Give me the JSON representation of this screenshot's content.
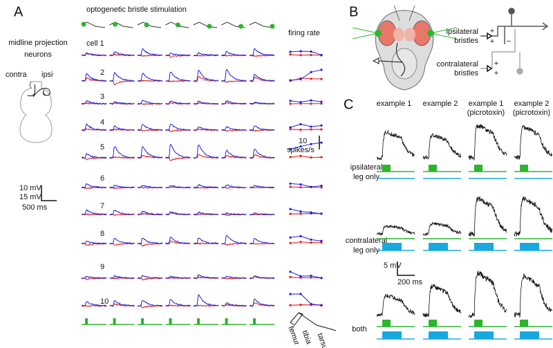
{
  "panel_a": {
    "label": "A",
    "stimulation_title": "optogenetic bristle stimulation",
    "neuron_title": [
      "midline projection",
      "neurons"
    ],
    "contra": "contra",
    "ipsi": "ipsi",
    "cells": [
      "cell 1",
      "2",
      "3",
      "4",
      "5",
      "6",
      "7",
      "8",
      "9",
      "10"
    ],
    "scale_blue": "10 mV",
    "scale_red": "15 mV",
    "scale_time": "500 ms",
    "firing_rate": "firing rate",
    "rate_scale": [
      "10",
      "spikes/s"
    ],
    "leg_parts": [
      "femur",
      "tibia",
      "tarsus"
    ]
  },
  "panel_b": {
    "label": "B",
    "ipsilateral": [
      "ipsilateral",
      "bristles"
    ],
    "contralateral": [
      "contralateral",
      "bristles"
    ],
    "signs": [
      "+",
      "+",
      "−",
      "+",
      "+"
    ]
  },
  "panel_c": {
    "label": "C",
    "columns": [
      [
        "example 1"
      ],
      [
        "example 2"
      ],
      [
        "example 1",
        "(picrotoxin)"
      ],
      [
        "example 2",
        "(picrotoxin)"
      ]
    ],
    "rows": [
      [
        "ipsilateral",
        "leg only"
      ],
      [
        "contralateral",
        "leg only"
      ],
      [
        "both"
      ]
    ],
    "scale_voltage": "5 mV",
    "scale_time": "200 ms"
  }
}
